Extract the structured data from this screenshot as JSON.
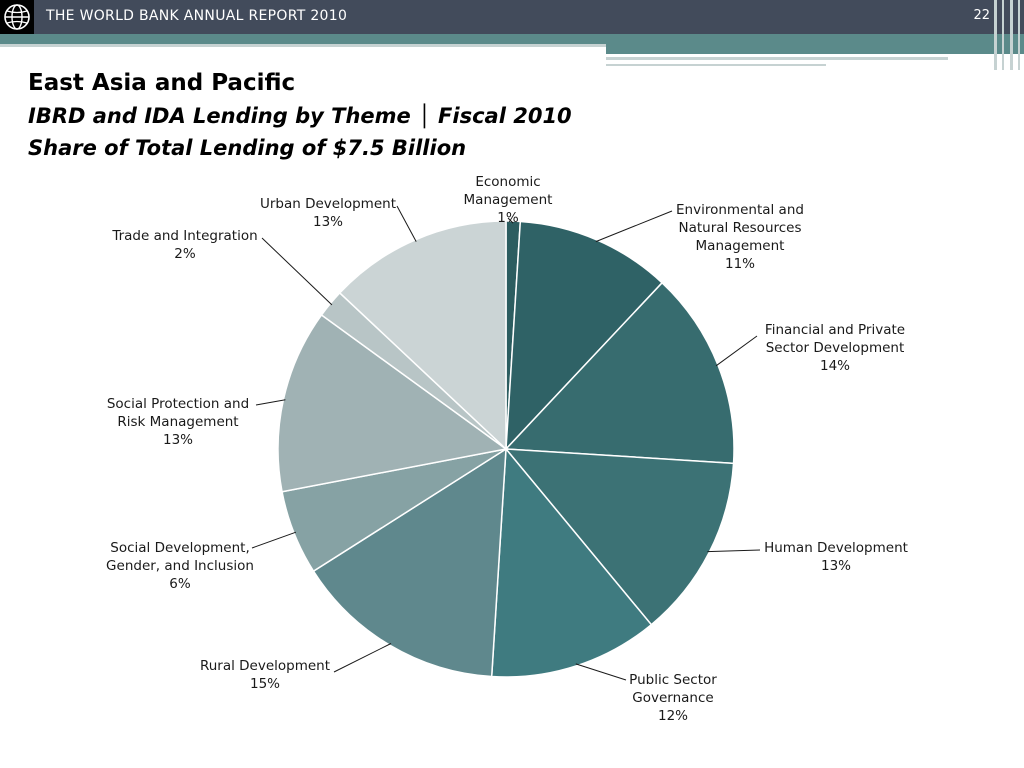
{
  "header": {
    "report_title": "THE WORLD BANK ANNUAL REPORT 2010",
    "page_number": "22"
  },
  "title": {
    "line1": "East Asia and Pacific",
    "line2": "IBRD and IDA Lending by Theme │ Fiscal 2010",
    "line3": "Share of Total Lending of $7.5 Billion"
  },
  "colors": {
    "header_bar": "#424b5b",
    "accent_teal": "#5b8a8a"
  },
  "chart_data": {
    "type": "pie",
    "start": "12 o'clock",
    "direction": "clockwise",
    "slices": [
      {
        "label_lines": [
          "Economic",
          "Management"
        ],
        "pct_text": "1%",
        "value": 1,
        "color": "#2c5d60"
      },
      {
        "label_lines": [
          "Environmental and",
          "Natural Resources",
          "Management"
        ],
        "pct_text": "11%",
        "value": 11,
        "color": "#2f6266"
      },
      {
        "label_lines": [
          "Financial and Private",
          "Sector Development"
        ],
        "pct_text": "14%",
        "value": 14,
        "color": "#376c6f"
      },
      {
        "label_lines": [
          "Human Development"
        ],
        "pct_text": "13%",
        "value": 13,
        "color": "#3c7275"
      },
      {
        "label_lines": [
          "Public Sector",
          "Governance"
        ],
        "pct_text": "12%",
        "value": 12,
        "color": "#3f7b80"
      },
      {
        "label_lines": [
          "Rural Development"
        ],
        "pct_text": "15%",
        "value": 15,
        "color": "#5f888d"
      },
      {
        "label_lines": [
          "Social Development,",
          "Gender, and Inclusion"
        ],
        "pct_text": "6%",
        "value": 6,
        "color": "#86a2a4"
      },
      {
        "label_lines": [
          "Social Protection and",
          "Risk Management"
        ],
        "pct_text": "13%",
        "value": 13,
        "color": "#a0b2b4"
      },
      {
        "label_lines": [
          "Trade and Integration"
        ],
        "pct_text": "2%",
        "value": 2,
        "color": "#b8c5c6"
      },
      {
        "label_lines": [
          "Urban Development"
        ],
        "pct_text": "13%",
        "value": 13,
        "color": "#cbd4d5"
      }
    ]
  }
}
